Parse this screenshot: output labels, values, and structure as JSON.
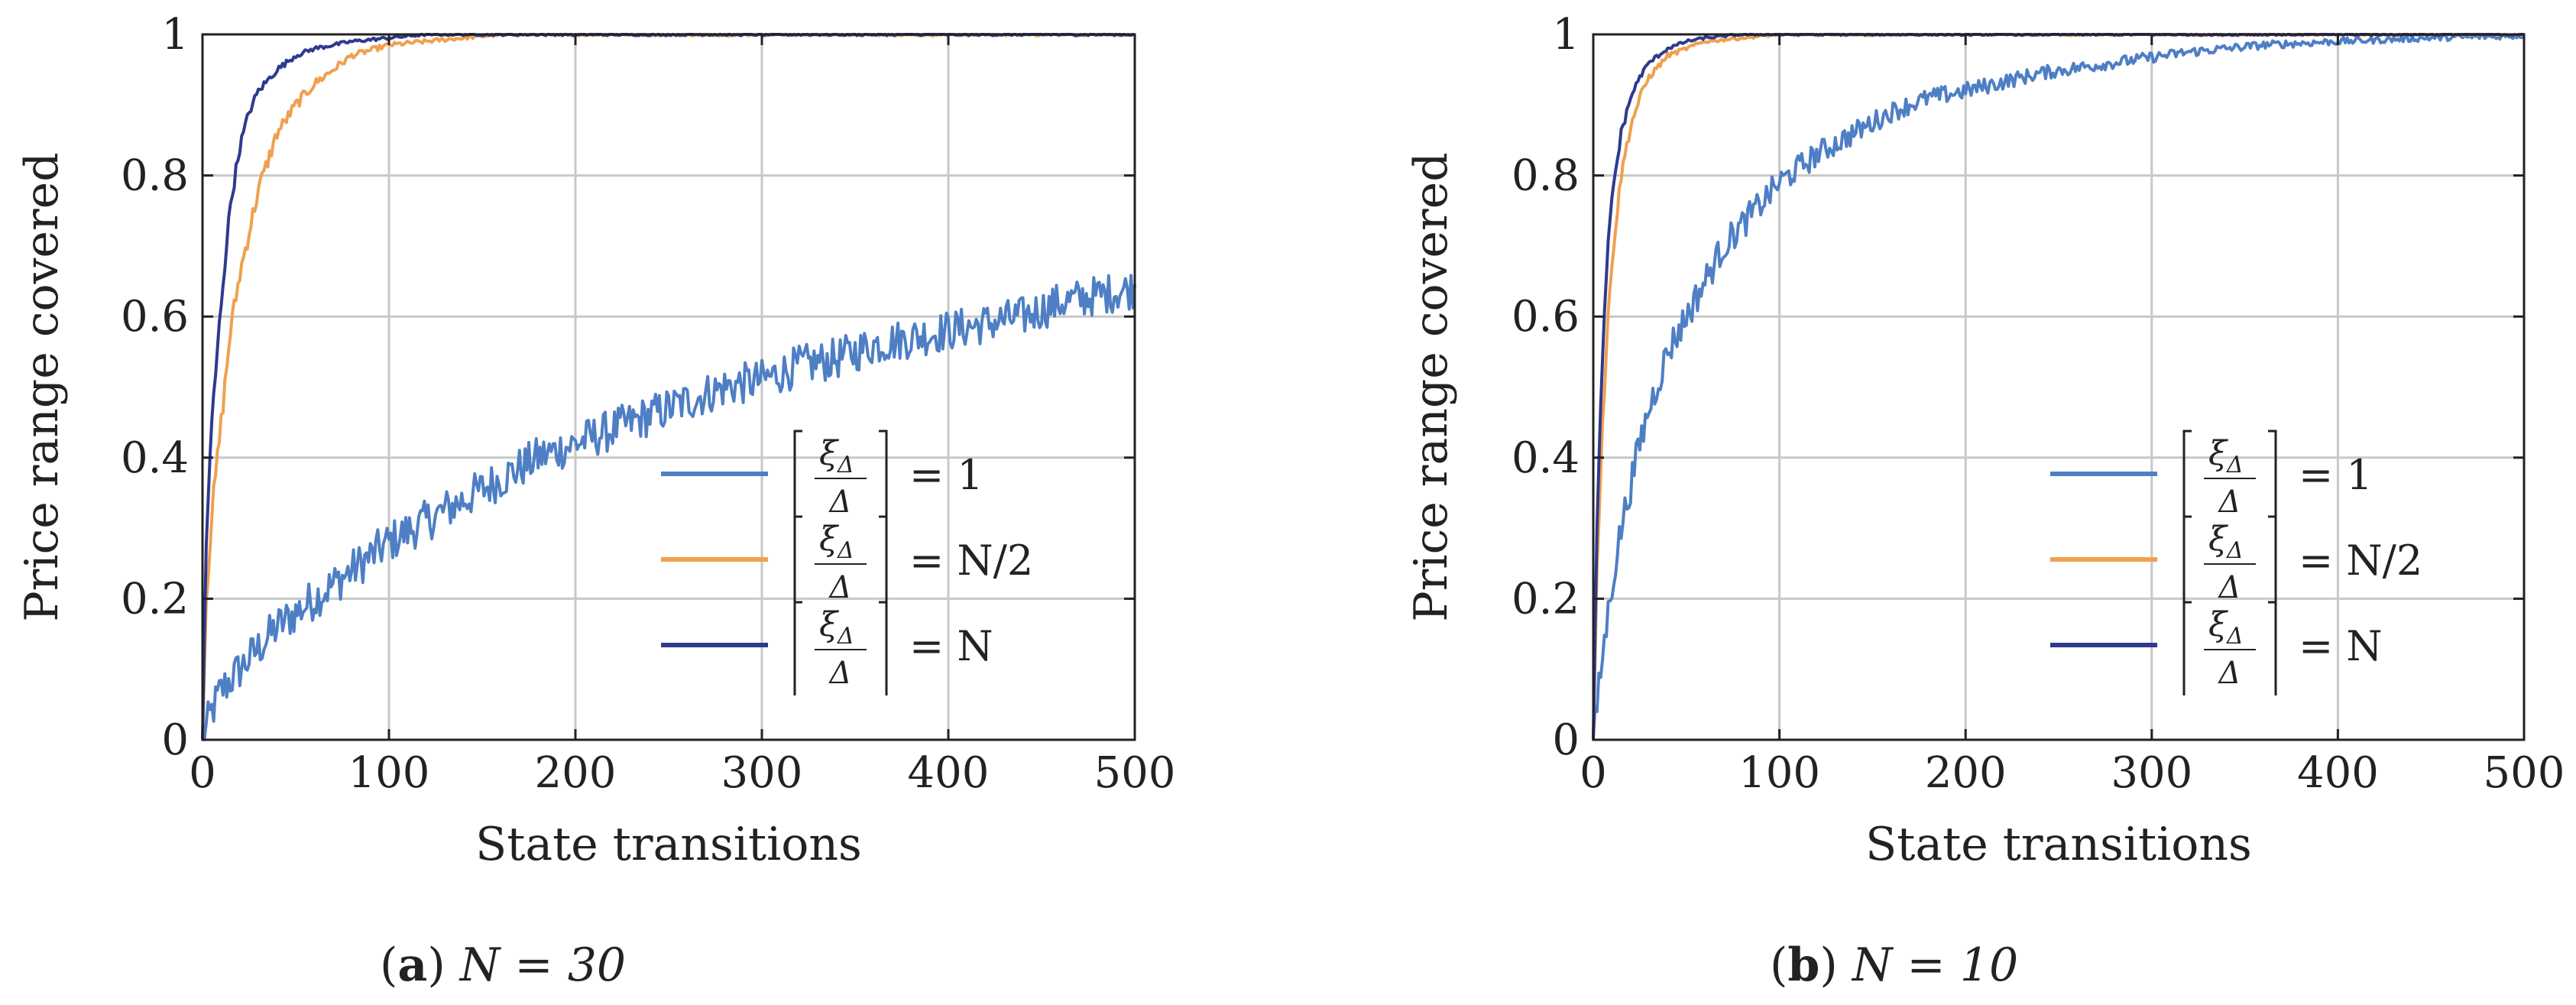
{
  "colors": {
    "series1": "#4e7fc5",
    "series2": "#f0a04f",
    "series3": "#2e3a8e",
    "grid": "#c8c8c8",
    "axis": "#222222"
  },
  "chart_data": [
    {
      "type": "line",
      "id": "a",
      "caption_label": "a",
      "caption_expr": "N = 30",
      "xlabel": "State transitions",
      "ylabel": "Price range covered",
      "xlim": [
        0,
        500
      ],
      "ylim": [
        0,
        1
      ],
      "xticks": [
        "0",
        "100",
        "200",
        "300",
        "400",
        "500"
      ],
      "yticks": [
        "0",
        "0.2",
        "0.4",
        "0.6",
        "0.8",
        "1"
      ],
      "grid": true,
      "legend_position": "bottom-right",
      "series": [
        {
          "name": "⌊ξΔ/Δ⌋ = 1",
          "legend_rhs": "= 1",
          "color_key": "series1",
          "x": [
            0,
            5,
            10,
            20,
            30,
            40,
            50,
            60,
            70,
            80,
            90,
            100,
            120,
            140,
            160,
            180,
            200,
            220,
            240,
            260,
            280,
            300,
            320,
            340,
            360,
            380,
            400,
            420,
            440,
            460,
            480,
            500
          ],
          "y": [
            0,
            0.04,
            0.07,
            0.1,
            0.13,
            0.16,
            0.18,
            0.2,
            0.22,
            0.24,
            0.26,
            0.28,
            0.31,
            0.34,
            0.37,
            0.4,
            0.42,
            0.44,
            0.46,
            0.48,
            0.5,
            0.51,
            0.53,
            0.54,
            0.56,
            0.57,
            0.58,
            0.59,
            0.6,
            0.62,
            0.63,
            0.64
          ],
          "noise": 0.03
        },
        {
          "name": "⌊ξΔ/Δ⌋ = N/2",
          "legend_rhs": "= N/2",
          "color_key": "series2",
          "x": [
            0,
            2,
            5,
            10,
            15,
            20,
            25,
            30,
            40,
            50,
            60,
            70,
            80,
            100,
            120,
            140,
            160,
            200,
            500
          ],
          "y": [
            0,
            0.2,
            0.32,
            0.45,
            0.58,
            0.66,
            0.72,
            0.78,
            0.86,
            0.9,
            0.93,
            0.95,
            0.97,
            0.985,
            0.99,
            0.995,
            1,
            1,
            1
          ],
          "noise": 0.015
        },
        {
          "name": "⌊ξΔ/Δ⌋ = N",
          "legend_rhs": "= N",
          "color_key": "series3",
          "x": [
            0,
            2,
            5,
            10,
            15,
            20,
            25,
            30,
            40,
            50,
            60,
            80,
            100,
            120,
            160,
            500
          ],
          "y": [
            0,
            0.28,
            0.45,
            0.62,
            0.76,
            0.84,
            0.89,
            0.92,
            0.95,
            0.97,
            0.98,
            0.99,
            0.995,
            1,
            1,
            1
          ],
          "noise": 0.012
        }
      ]
    },
    {
      "type": "line",
      "id": "b",
      "caption_label": "b",
      "caption_expr": "N = 10",
      "xlabel": "State transitions",
      "ylabel": "Price range covered",
      "xlim": [
        0,
        500
      ],
      "ylim": [
        0,
        1
      ],
      "xticks": [
        "0",
        "100",
        "200",
        "300",
        "400",
        "500"
      ],
      "yticks": [
        "0",
        "0.2",
        "0.4",
        "0.6",
        "0.8",
        "1"
      ],
      "grid": true,
      "legend_position": "bottom-right",
      "series": [
        {
          "name": "⌊ξΔ/Δ⌋ = 1",
          "legend_rhs": "= 1",
          "color_key": "series1",
          "x": [
            0,
            5,
            10,
            15,
            20,
            25,
            30,
            40,
            50,
            60,
            70,
            80,
            90,
            100,
            120,
            140,
            160,
            180,
            200,
            240,
            280,
            320,
            360,
            400,
            450,
            500
          ],
          "y": [
            0,
            0.12,
            0.22,
            0.3,
            0.36,
            0.42,
            0.47,
            0.55,
            0.6,
            0.65,
            0.7,
            0.73,
            0.76,
            0.79,
            0.83,
            0.86,
            0.89,
            0.91,
            0.92,
            0.945,
            0.96,
            0.975,
            0.985,
            0.99,
            0.995,
            0.998
          ],
          "noise": 0.025
        },
        {
          "name": "⌊ξΔ/Δ⌋ = N/2",
          "legend_rhs": "= N/2",
          "color_key": "series2",
          "x": [
            0,
            2,
            5,
            8,
            10,
            15,
            20,
            25,
            30,
            40,
            50,
            60,
            80,
            100,
            500
          ],
          "y": [
            0,
            0.25,
            0.45,
            0.6,
            0.68,
            0.8,
            0.87,
            0.91,
            0.94,
            0.97,
            0.98,
            0.99,
            0.995,
            1,
            1
          ],
          "noise": 0.012
        },
        {
          "name": "⌊ξΔ/Δ⌋ = N",
          "legend_rhs": "= N",
          "color_key": "series3",
          "x": [
            0,
            2,
            5,
            8,
            10,
            15,
            20,
            25,
            30,
            40,
            50,
            60,
            80,
            500
          ],
          "y": [
            0,
            0.3,
            0.55,
            0.7,
            0.77,
            0.86,
            0.91,
            0.94,
            0.96,
            0.98,
            0.99,
            0.995,
            1,
            1
          ],
          "noise": 0.01
        }
      ]
    }
  ]
}
